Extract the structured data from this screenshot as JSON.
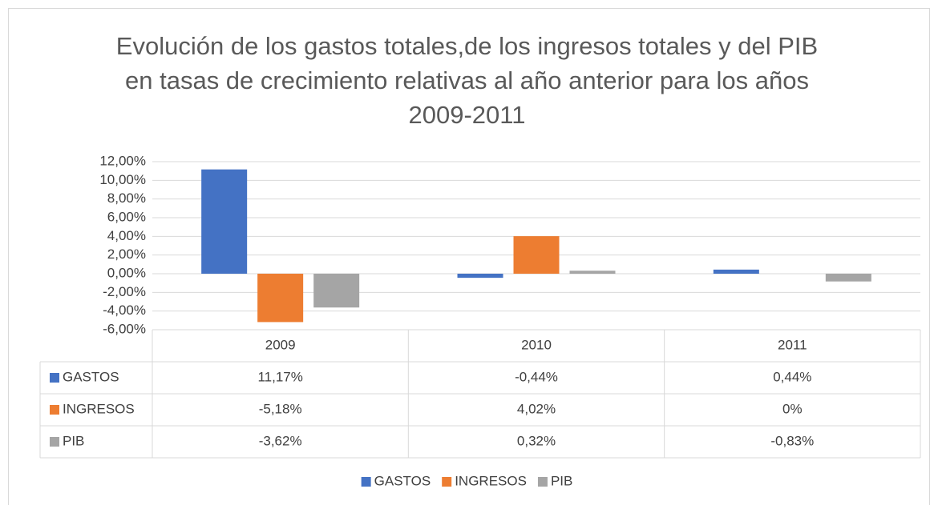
{
  "chart_data": {
    "type": "bar",
    "title": "Evolución de los gastos totales,de los ingresos totales y del PIB en tasas de crecimiento relativas al año anterior para los años 2009-2011",
    "categories": [
      "2009",
      "2010",
      "2011"
    ],
    "series": [
      {
        "name": "GASTOS",
        "color": "#4472c4",
        "values": [
          11.17,
          -0.44,
          0.44
        ],
        "value_labels": [
          "11,17%",
          "-0,44%",
          "0,44%"
        ]
      },
      {
        "name": "INGRESOS",
        "color": "#ed7d31",
        "values": [
          -5.18,
          4.02,
          0
        ],
        "value_labels": [
          "-5,18%",
          "4,02%",
          "0%"
        ]
      },
      {
        "name": "PIB",
        "color": "#a5a5a5",
        "values": [
          -3.62,
          0.32,
          -0.83
        ],
        "value_labels": [
          "-3,62%",
          "0,32%",
          "-0,83%"
        ]
      }
    ],
    "ylim": [
      -6,
      12
    ],
    "yticks": [
      {
        "value": -6,
        "label": "-6,00%"
      },
      {
        "value": -4,
        "label": "-4,00%"
      },
      {
        "value": -2,
        "label": "-2,00%"
      },
      {
        "value": 0,
        "label": "0,00%"
      },
      {
        "value": 2,
        "label": "2,00%"
      },
      {
        "value": 4,
        "label": "4,00%"
      },
      {
        "value": 6,
        "label": "6,00%"
      },
      {
        "value": 8,
        "label": "8,00%"
      },
      {
        "value": 10,
        "label": "10,00%"
      },
      {
        "value": 12,
        "label": "12,00%"
      }
    ],
    "grid": true,
    "legend": "bottom"
  }
}
